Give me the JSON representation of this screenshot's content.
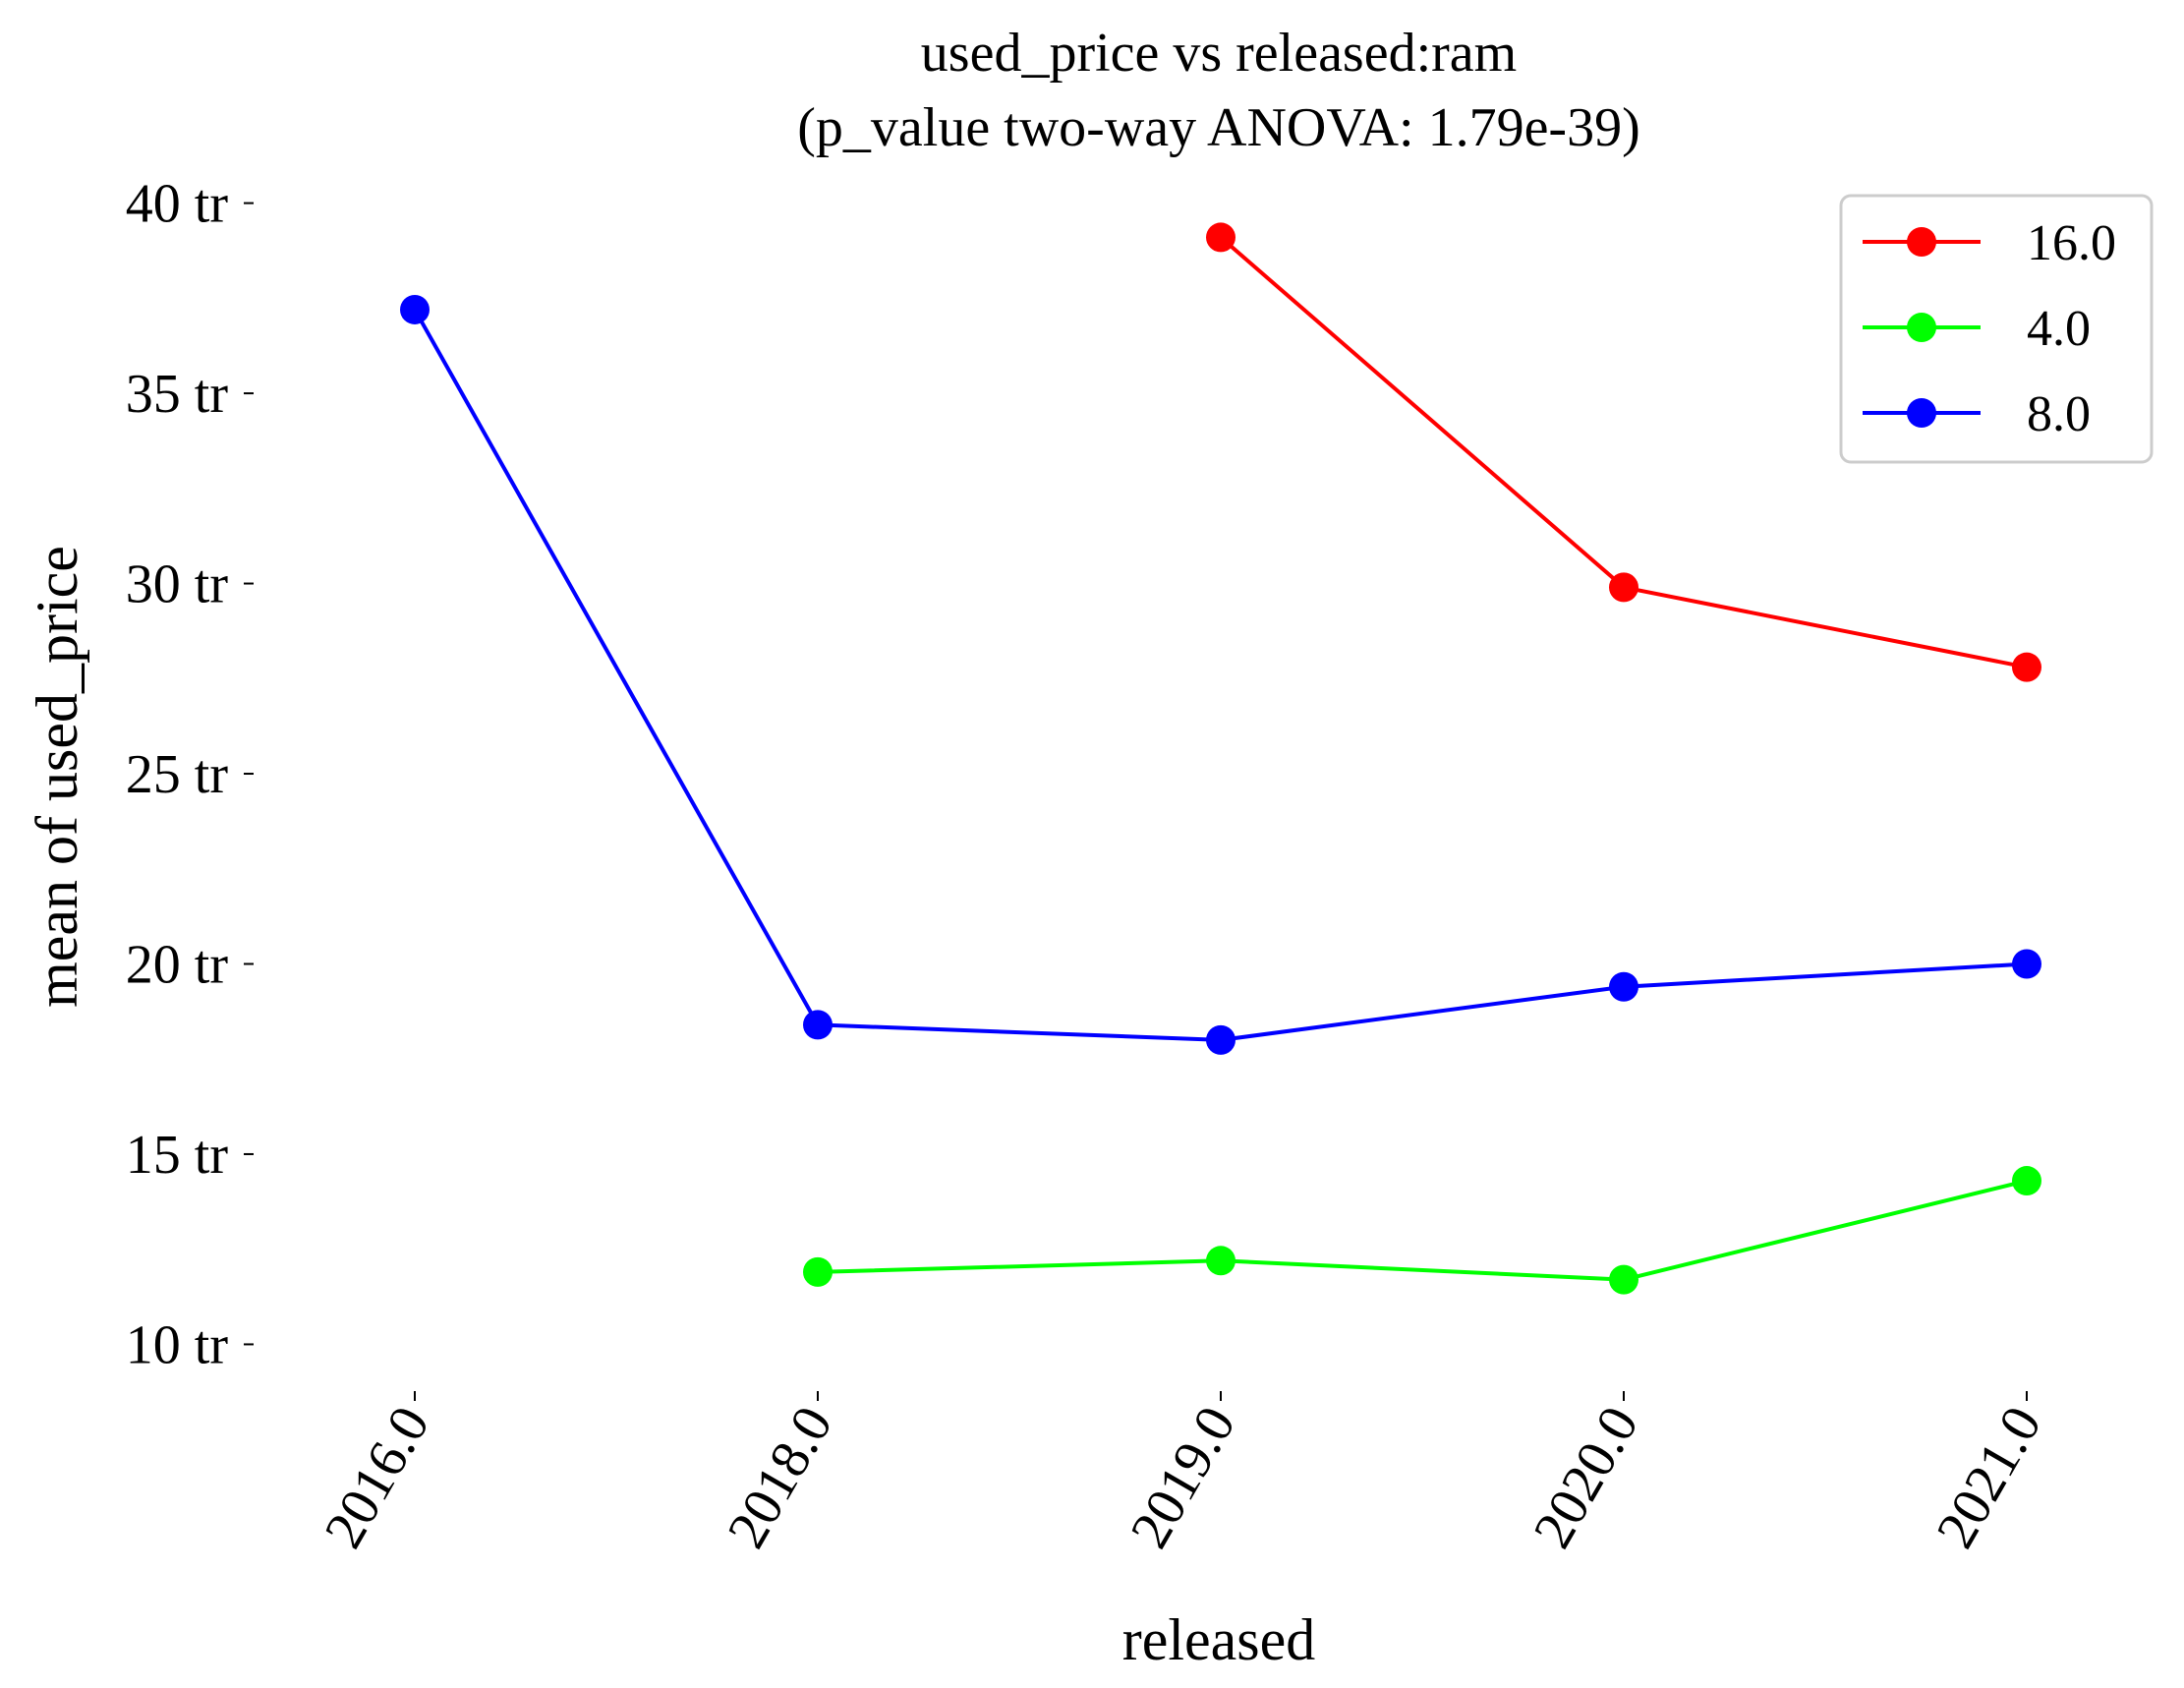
{
  "chart_data": {
    "type": "line",
    "title_line1": "used_price vs released:ram",
    "title_line2": "(p_value two-way ANOVA: 1.79e-39)",
    "xlabel": "released",
    "ylabel": "mean of used_price",
    "x_categories": [
      "2016.0",
      "2018.0",
      "2019.0",
      "2020.0",
      "2021.0"
    ],
    "y_ticks": [
      10,
      15,
      20,
      25,
      30,
      35,
      40
    ],
    "y_tick_labels": [
      "10 tr",
      "15 tr",
      "20 tr",
      "25 tr",
      "30 tr",
      "35 tr",
      "40 tr"
    ],
    "y_unit_multiplier": 1000000,
    "ylim": [
      8.9,
      40.3
    ],
    "grid": false,
    "legend_position": "top-right",
    "series": [
      {
        "name": "16.0",
        "color": "#ff0000",
        "x": [
          "2019.0",
          "2020.0",
          "2021.0"
        ],
        "values": [
          39.1,
          29.9,
          27.8
        ]
      },
      {
        "name": "4.0",
        "color": "#00ff00",
        "x": [
          "2018.0",
          "2019.0",
          "2020.0",
          "2021.0"
        ],
        "values": [
          11.9,
          12.2,
          11.7,
          14.3
        ]
      },
      {
        "name": "8.0",
        "color": "#0000ff",
        "x": [
          "2016.0",
          "2018.0",
          "2019.0",
          "2020.0",
          "2021.0"
        ],
        "values": [
          37.2,
          18.4,
          18.0,
          19.4,
          20.0
        ]
      }
    ]
  }
}
